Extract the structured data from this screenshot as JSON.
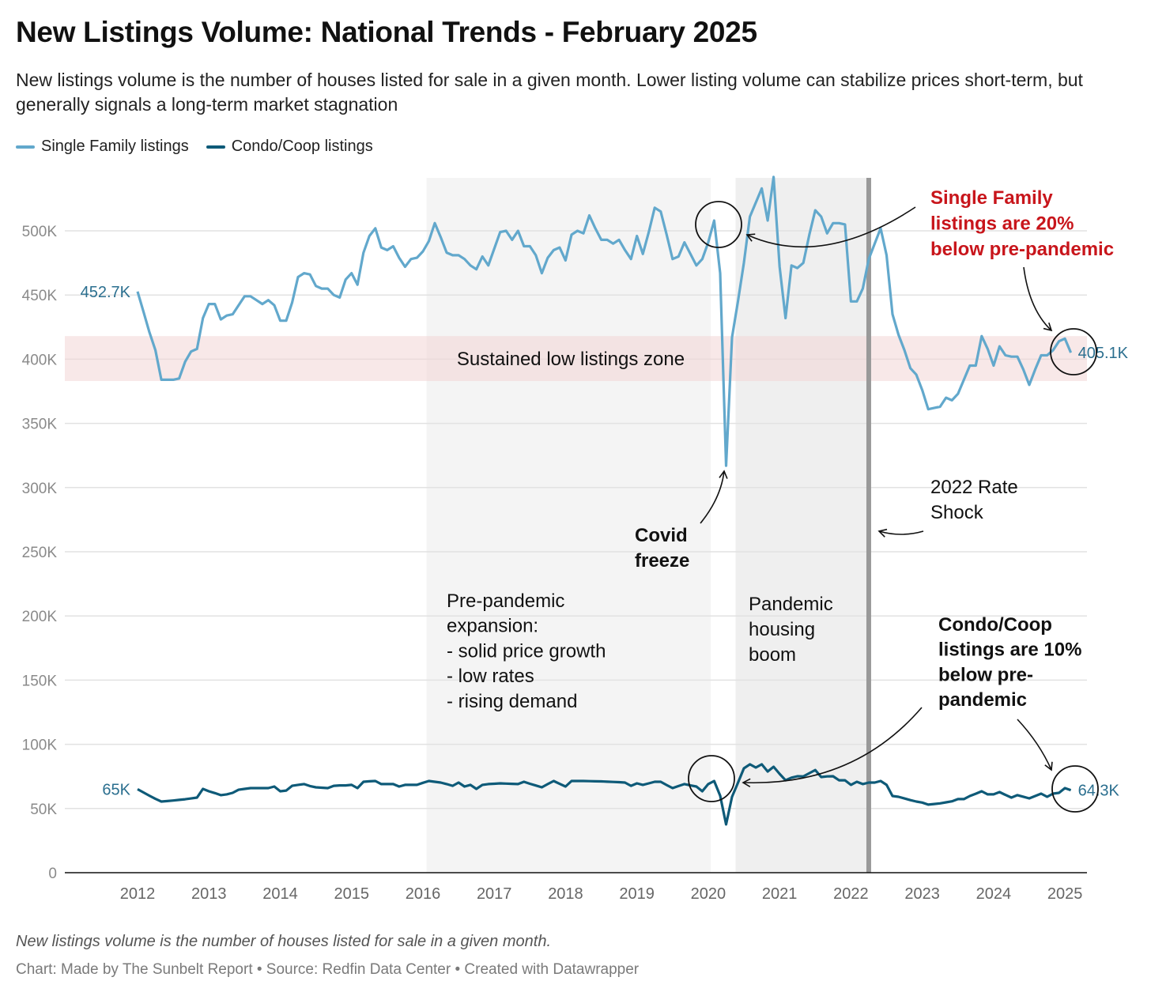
{
  "header": {
    "title": "New Listings Volume: National Trends - February 2025",
    "subtitle": "New listings volume is the number of houses listed for sale in a given month. Lower listing volume can stabilize prices short-term, but generally signals a long-term market stagnation"
  },
  "footer": {
    "note": "New listings volume is the number of houses listed for sale in a given month.",
    "credit": "Chart: Made by The Sunbelt Report • Source: Redfin Data Center • Created with Datawrapper"
  },
  "colors": {
    "single_family": "#62a8cc",
    "condo": "#0e5a78",
    "value_label": "#2b6f8f",
    "red_annotation": "#c8151b",
    "low_zone": "#f3d6d6",
    "pre_pandemic_band": "#f4f4f4",
    "pandemic_band": "#efefef",
    "rate_shock_line": "#999999"
  },
  "chart_data": {
    "type": "line",
    "title": "New Listings Volume: National Trends - February 2025",
    "xlabel": "",
    "ylabel": "",
    "unit": "thousands of listings",
    "start_month": "2012-01",
    "end_month": "2025-02",
    "frequency": "monthly",
    "ylim": [
      0,
      545
    ],
    "yticks": [
      0,
      50,
      100,
      150,
      200,
      250,
      300,
      350,
      400,
      450,
      500
    ],
    "ytick_labels": [
      "0",
      "50K",
      "100K",
      "150K",
      "200K",
      "250K",
      "300K",
      "350K",
      "400K",
      "450K",
      "500K"
    ],
    "xticks": [
      2012,
      2013,
      2014,
      2015,
      2016,
      2017,
      2018,
      2019,
      2020,
      2021,
      2022,
      2023,
      2024,
      2025
    ],
    "xtick_labels": [
      "2012",
      "2013",
      "2014",
      "2015",
      "2016",
      "2017",
      "2018",
      "2019",
      "2020",
      "2021",
      "2022",
      "2023",
      "2024",
      "2025"
    ],
    "grid": true,
    "legend_position": "top-left",
    "series": [
      {
        "name": "Single Family listings",
        "start_label": "452.7K",
        "end_label": "405.1K",
        "values": [
          452.7,
          437,
          421,
          407,
          384,
          384,
          384,
          385,
          398,
          406,
          408,
          432,
          443,
          443,
          431,
          434,
          435,
          442,
          449,
          449,
          446,
          443,
          446,
          442,
          430,
          430,
          444,
          464,
          467,
          466,
          457,
          455,
          455,
          450,
          448,
          462,
          467,
          458,
          483,
          496,
          502,
          487,
          485,
          488,
          479,
          472,
          478,
          479,
          484,
          492,
          506,
          495,
          483,
          481,
          481,
          478,
          473,
          470,
          480,
          473,
          486,
          499,
          500,
          493,
          500,
          488,
          488,
          481,
          467,
          479,
          485,
          487,
          477,
          497,
          500,
          498,
          512,
          502,
          493,
          493,
          490,
          493,
          485,
          478,
          496,
          482,
          499,
          518,
          515,
          497,
          478,
          480,
          491,
          482,
          473,
          478,
          491,
          508,
          467,
          317,
          417,
          445,
          475,
          511,
          522,
          533,
          508,
          542,
          472,
          432,
          473,
          471,
          475,
          497,
          516,
          511,
          498,
          506,
          506,
          505,
          445,
          445,
          455,
          478,
          490,
          502,
          481,
          435,
          419,
          407,
          393,
          388,
          376,
          361,
          362,
          363,
          370,
          368,
          373,
          384,
          395,
          395,
          418,
          408,
          395,
          410,
          403,
          402,
          402,
          392,
          380,
          392,
          403,
          403,
          407,
          414,
          416,
          405.1
        ]
      },
      {
        "name": "Condo/Coop listings",
        "start_label": "65K",
        "end_label": "64.3K",
        "values": [
          65,
          62.5,
          60,
          57.5,
          55.4,
          55.8,
          56.2,
          56.7,
          57.2,
          57.8,
          58.5,
          65.3,
          63.4,
          62,
          60.4,
          61,
          62.2,
          64.6,
          65.3,
          65.9,
          65.9,
          65.9,
          65.9,
          67.1,
          63.4,
          64,
          67.7,
          68.4,
          69,
          67.5,
          66.5,
          66.2,
          65.9,
          67.7,
          68,
          68,
          68.4,
          65.9,
          70.8,
          71.2,
          71.4,
          69,
          69,
          69,
          67.1,
          68.4,
          68.4,
          68.4,
          70,
          71.4,
          70.8,
          70.2,
          69,
          67.7,
          70.2,
          67.1,
          68.4,
          65.3,
          68.4,
          69,
          69.3,
          69.6,
          69.4,
          69.2,
          69,
          70.8,
          69.3,
          67.9,
          66.5,
          69,
          71.4,
          69.2,
          67.1,
          71.4,
          71.4,
          71.4,
          71.3,
          71.2,
          71.1,
          70.9,
          70.7,
          70.5,
          70.2,
          67.7,
          69.6,
          68.4,
          69.6,
          70.8,
          70.8,
          68.3,
          65.9,
          67.5,
          69,
          68,
          67.1,
          63.4,
          69,
          71.4,
          60,
          37.6,
          59.1,
          70,
          81.3,
          84.4,
          81.9,
          84.4,
          78.8,
          82.5,
          77,
          72,
          74,
          75.1,
          75,
          77.5,
          80,
          74.5,
          75,
          75.1,
          72,
          72,
          68.4,
          70.8,
          69,
          70.2,
          70.2,
          71.4,
          68.4,
          59.7,
          59.1,
          57.8,
          56.5,
          55.4,
          54.6,
          53,
          53.5,
          54,
          54.8,
          55.6,
          57.3,
          57.3,
          59.7,
          61.5,
          63.4,
          61,
          61,
          62.8,
          60.6,
          58.5,
          60.4,
          59.2,
          57.9,
          59.7,
          61.6,
          59.1,
          61.6,
          62.2,
          65.9,
          64.3
        ]
      }
    ],
    "ranges": {
      "low_listings_zone": {
        "label": "Sustained low listings zone",
        "from": 383,
        "to": 418
      },
      "pre_pandemic": {
        "from": "2016-02",
        "to": "2020-01"
      },
      "pandemic": {
        "from": "2020-06",
        "to": "2022-04"
      },
      "rate_shock": {
        "at": "2022-04"
      }
    },
    "annotations": {
      "low_zone": [
        "Sustained low listings zone"
      ],
      "pre_pandemic": [
        "Pre-pandemic",
        "expansion:",
        "- solid price growth",
        "- low rates",
        "- rising demand"
      ],
      "pandemic": [
        "Pandemic",
        "housing",
        "boom"
      ],
      "covid": [
        "Covid",
        "freeze"
      ],
      "rate_shock": [
        "2022 Rate",
        "Shock"
      ],
      "sf_note": [
        "Single Family",
        "listings are 20%",
        "below pre-pandemic"
      ],
      "condo_note": [
        "Condo/Coop",
        "listings are 10%",
        "below pre-",
        "pandemic"
      ]
    }
  }
}
